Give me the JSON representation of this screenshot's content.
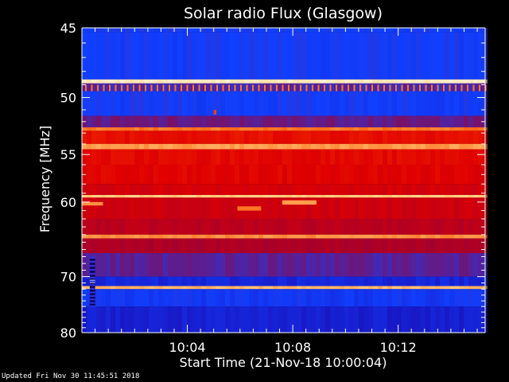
{
  "chart_data": {
    "type": "heatmap",
    "title": "Solar radio Flux (Glasgow)",
    "xlabel": "Start Time (21-Nov-18 10:00:04)",
    "ylabel": "Frequency [MHz]",
    "x_ticks": [
      "10:04",
      "10:08",
      "10:12"
    ],
    "x_tick_minutes": [
      4,
      8,
      12
    ],
    "x_range_minutes": [
      0,
      15.3
    ],
    "y_ticks": [
      45,
      50,
      55,
      60,
      70,
      80
    ],
    "y_range_mhz": [
      45,
      80
    ],
    "y_scale": "reciprocal",
    "colormap": [
      "#000000",
      "#2000a0",
      "#1040ff",
      "#a00030",
      "#e00000",
      "#ff5000",
      "#ffd080",
      "#ffffff"
    ],
    "bands": [
      {
        "from": 45.0,
        "to": 45.3,
        "level": 2
      },
      {
        "from": 45.3,
        "to": 48.6,
        "level": 2
      },
      {
        "from": 48.6,
        "to": 48.9,
        "level": 6.5
      },
      {
        "from": 48.9,
        "to": 49.5,
        "level": 2.4
      },
      {
        "from": 49.5,
        "to": 51.5,
        "level": 2
      },
      {
        "from": 51.5,
        "to": 52.5,
        "level": 2.6
      },
      {
        "from": 52.5,
        "to": 52.8,
        "level": 5.3
      },
      {
        "from": 52.8,
        "to": 54.0,
        "level": 4.2
      },
      {
        "from": 54.0,
        "to": 54.5,
        "level": 5.6
      },
      {
        "from": 54.5,
        "to": 56.0,
        "level": 4.1
      },
      {
        "from": 56.0,
        "to": 58.0,
        "level": 4.0
      },
      {
        "from": 58.0,
        "to": 59.2,
        "level": 3.8
      },
      {
        "from": 59.2,
        "to": 59.5,
        "level": 6.0
      },
      {
        "from": 59.5,
        "to": 62.0,
        "level": 3.7
      },
      {
        "from": 62.0,
        "to": 64.0,
        "level": 3.4
      },
      {
        "from": 64.0,
        "to": 64.5,
        "level": 5.5
      },
      {
        "from": 64.5,
        "to": 66.5,
        "level": 3.2
      },
      {
        "from": 66.5,
        "to": 70.0,
        "level": 2.5
      },
      {
        "from": 70.0,
        "to": 71.5,
        "level": 1.6
      },
      {
        "from": 71.5,
        "to": 72.0,
        "level": 5.8
      },
      {
        "from": 72.0,
        "to": 75.0,
        "level": 1.9
      },
      {
        "from": 75.0,
        "to": 80.0,
        "level": 1.5
      }
    ],
    "features": [
      {
        "t_from": 0.3,
        "t_to": 0.5,
        "f_from": 67.0,
        "f_to": 75.0,
        "level": 0.5
      },
      {
        "t_from": 0.3,
        "t_to": 0.5,
        "f_from": 70.5,
        "f_to": 71.0,
        "level": 7
      },
      {
        "t_from": 0.0,
        "t_to": 0.8,
        "f_from": 60.0,
        "f_to": 60.4,
        "level": 5.5
      },
      {
        "t_from": 5.9,
        "t_to": 6.8,
        "f_from": 60.5,
        "f_to": 61.0,
        "level": 5.3
      },
      {
        "t_from": 7.6,
        "t_to": 8.9,
        "f_from": 59.8,
        "f_to": 60.3,
        "level": 5.6
      },
      {
        "t_from": 5.0,
        "t_to": 5.1,
        "f_from": 51.0,
        "f_to": 51.4,
        "level": 4.8
      }
    ],
    "footer": "Updated Fri Nov 30 11:45:51 2018"
  }
}
